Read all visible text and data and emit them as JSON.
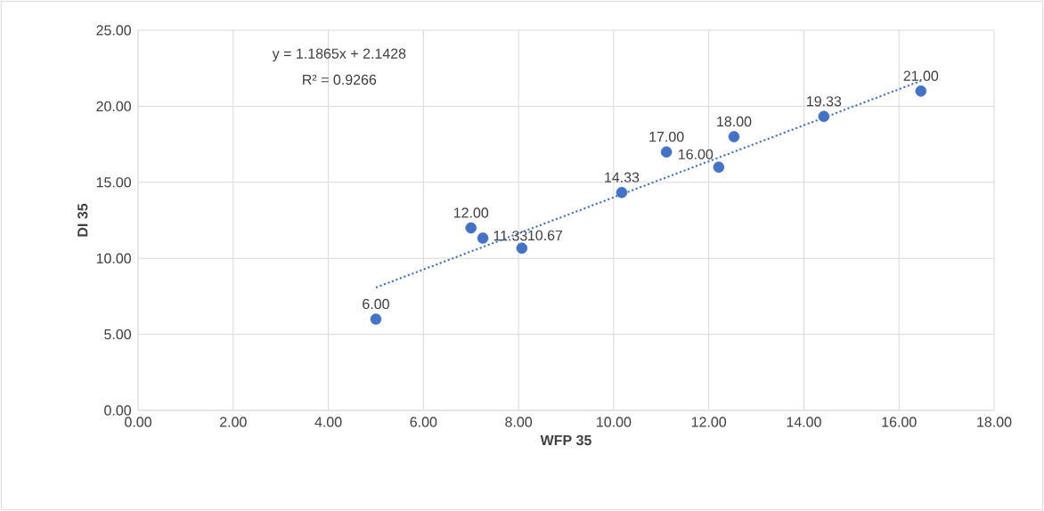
{
  "chart_data": {
    "type": "scatter",
    "xlabel": "WFP 35",
    "ylabel": "DI 35",
    "annotations": [
      "y = 1.1865x + 2.1428",
      "R² = 0.9266"
    ],
    "series": [
      {
        "color": "#4472c4",
        "marker": "circle",
        "x": [
          5.0,
          7.0,
          7.25,
          8.07,
          10.17,
          11.11,
          12.21,
          12.53,
          14.42,
          16.46
        ],
        "values": [
          6.0,
          12.0,
          11.33,
          10.67,
          14.33,
          17.0,
          16.0,
          18.0,
          19.33,
          21.0
        ],
        "value_labels": [
          "6.00",
          "12.00",
          "11.33",
          "10.67",
          "14.33",
          "17.00",
          "16.00",
          "18.00",
          "19.33",
          "21.00"
        ]
      },
      {
        "type": "line",
        "color": "#4472c4",
        "line_style": "dotted",
        "marker": "none",
        "x": [
          5.0,
          16.46
        ],
        "values": [
          8.08,
          21.67
        ]
      }
    ],
    "xlim": [
      0,
      18
    ],
    "ylim": [
      0,
      25
    ],
    "xticks": [
      {
        "value": 0,
        "label": "0.00"
      },
      {
        "value": 2,
        "label": "2.00"
      },
      {
        "value": 4,
        "label": "4.00"
      },
      {
        "value": 6,
        "label": "6.00"
      },
      {
        "value": 8,
        "label": "8.00"
      },
      {
        "value": 10,
        "label": "10.00"
      },
      {
        "value": 12,
        "label": "12.00"
      },
      {
        "value": 14,
        "label": "14.00"
      },
      {
        "value": 16,
        "label": "16.00"
      },
      {
        "value": 18,
        "label": "18.00"
      }
    ],
    "yticks": [
      {
        "value": 0,
        "label": "0.00"
      },
      {
        "value": 5,
        "label": "5.00"
      },
      {
        "value": 10,
        "label": "10.00"
      },
      {
        "value": 15,
        "label": "15.00"
      },
      {
        "value": 20,
        "label": "20.00"
      },
      {
        "value": 25,
        "label": "25.00"
      }
    ],
    "grid": true
  }
}
